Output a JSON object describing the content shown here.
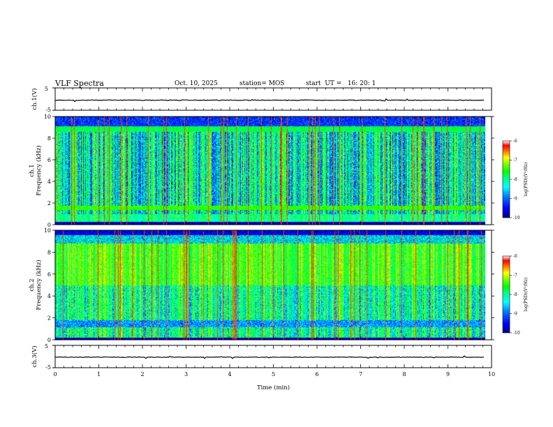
{
  "header": {
    "title": "VLF Spectra",
    "date": "Oct. 10, 2025",
    "station": "station= MOS",
    "start_ut": "start  UT =   16: 20: 1"
  },
  "chart_data": [
    {
      "type": "line",
      "panel": "ch1-waveform",
      "ylabel": "ch.1(V)",
      "ylim": [
        -5,
        5
      ],
      "yticks": [
        "5",
        "-5"
      ],
      "series": [
        {
          "name": "ch.1",
          "level_v": -0.5
        }
      ],
      "xlim": [
        0,
        10
      ]
    },
    {
      "type": "heatmap",
      "panel": "ch1-spectrogram",
      "ylabel_line1": "ch.1",
      "ylabel_line2": "Frequency (kHz)",
      "ylim": [
        0,
        10
      ],
      "yticks": [
        "0",
        "2",
        "4",
        "6",
        "8",
        "10"
      ],
      "xlim": [
        0,
        10
      ],
      "data_end_min": 9.85,
      "colorbar": {
        "label": "log(PSD)(V²/Hz)",
        "range": [
          -10,
          -6
        ],
        "ticks": [
          "-6",
          "-7",
          "-8",
          "-9",
          "-10"
        ]
      }
    },
    {
      "type": "heatmap",
      "panel": "ch2-spectrogram",
      "ylabel_line1": "ch.2",
      "ylabel_line2": "Frequency (kHz)",
      "ylim": [
        0,
        10
      ],
      "yticks": [
        "0",
        "2",
        "4",
        "6",
        "8",
        "10"
      ],
      "xlim": [
        0,
        10
      ],
      "data_end_min": 9.85,
      "colorbar": {
        "label": "log(PSD)(V²/Hz)",
        "range": [
          -10,
          -6
        ],
        "ticks": [
          "-6",
          "-7",
          "-8",
          "-9",
          "-10"
        ]
      }
    },
    {
      "type": "line",
      "panel": "ch3-waveform",
      "ylabel": "ch.3(V)",
      "ylim": [
        -5,
        5
      ],
      "yticks": [
        "5",
        "-5"
      ],
      "series": [
        {
          "name": "ch.3",
          "level_v": -0.3
        }
      ],
      "xlim": [
        0,
        10
      ],
      "xlabel": "Time (min)",
      "xticks": [
        "0",
        "1",
        "2",
        "3",
        "4",
        "5",
        "6",
        "7",
        "8",
        "9",
        "10"
      ]
    }
  ],
  "colormap": [
    "#000080",
    "#0000ff",
    "#0080ff",
    "#00ffff",
    "#00ff80",
    "#00ff00",
    "#80ff00",
    "#ffff00",
    "#ff8000",
    "#ff0000",
    "#ffffff"
  ]
}
